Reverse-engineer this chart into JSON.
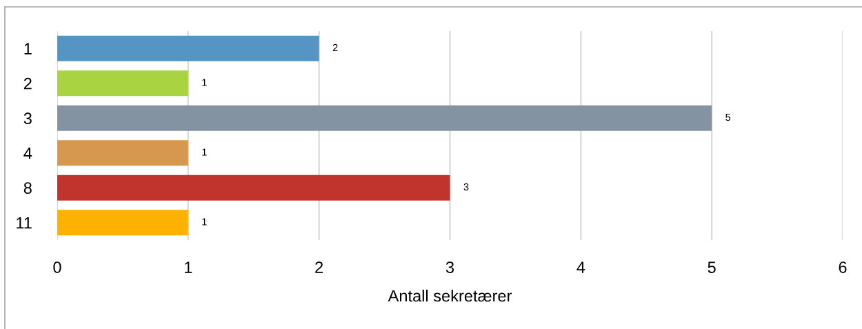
{
  "chart_data": {
    "type": "bar",
    "orientation": "horizontal",
    "categories": [
      "1",
      "2",
      "3",
      "4",
      "8",
      "11"
    ],
    "values": [
      2,
      1,
      5,
      1,
      3,
      1
    ],
    "colors": [
      "#5495c3",
      "#a9d340",
      "#8393a2",
      "#d6974f",
      "#c0342d",
      "#fdb100"
    ],
    "xlabel": "Antall sekretærer",
    "xlim": [
      0,
      6
    ],
    "xticks": [
      0,
      1,
      2,
      3,
      4,
      5,
      6
    ],
    "grid": "x",
    "data_labels": true
  }
}
